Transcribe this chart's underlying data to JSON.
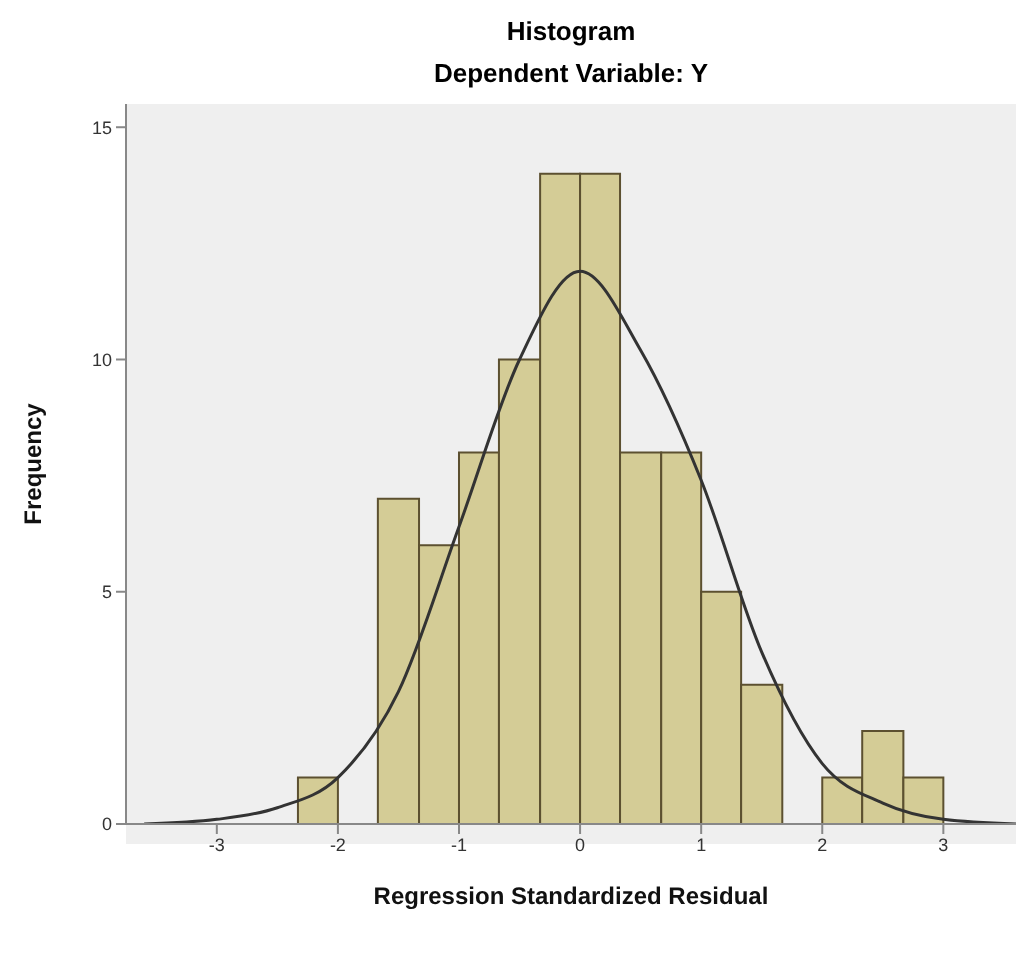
{
  "chart_data": {
    "type": "histogram",
    "title": "Histogram",
    "subtitle": "Dependent Variable: Y",
    "xlabel": "Regression Standardized Residual",
    "ylabel": "Frequency",
    "bins": [
      -2.33,
      -2,
      -1.67,
      -1.33,
      -1,
      -0.67,
      -0.33,
      0,
      0.33,
      0.67,
      1,
      1.33,
      1.67,
      2,
      2.33,
      2.67,
      3
    ],
    "values": [
      1,
      0,
      7,
      6,
      8,
      10,
      14,
      14,
      8,
      8,
      5,
      3,
      0,
      1,
      2,
      1
    ],
    "color": "#d4cc96",
    "series": [
      {
        "type": "line",
        "color": "#333333",
        "x": [
          -3.6,
          -3,
          -2.5,
          -2,
          -1.5,
          -1,
          -0.5,
          0,
          0.5,
          1,
          1.5,
          2,
          2.5,
          3,
          3.6
        ],
        "values": [
          0,
          0.1,
          0.35,
          1,
          2.85,
          6.4,
          10,
          11.9,
          10.2,
          7.4,
          3.7,
          1.3,
          0.45,
          0.1,
          0
        ]
      }
    ],
    "xlim": [
      -3.75,
      3.6
    ],
    "xticks": [
      -3,
      -2,
      -1,
      0,
      1,
      2,
      3
    ],
    "ylim": [
      0,
      15.5
    ],
    "yticks": [
      0,
      5,
      10,
      15
    ],
    "grid": false
  }
}
